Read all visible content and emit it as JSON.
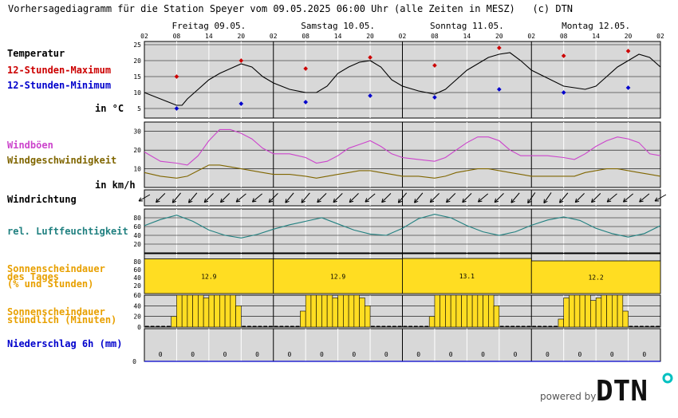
{
  "title": "Vorhersagediagramm für die Station Speyer vom 09.05.2025 06:00 Uhr (alle Zeiten in MESZ)   (c) DTN",
  "labels": {
    "temp": "Temperatur",
    "tmax": "12-Stunden-Maximum",
    "tmin": "12-Stunden-Minimum",
    "temp_unit": "in °C",
    "gust": "Windböen",
    "wind": "Windgeschwindigkeit",
    "wind_unit": "in km/h",
    "dir": "Windrichtung",
    "rh": "rel. Luftfeuchtigkeit",
    "sun_day_1": "Sonnenscheindauer",
    "sun_day_2": "des Tages",
    "sun_day_3": "(% und Stunden)",
    "sun_hour_1": "Sonnenscheindauer",
    "sun_hour_2": "stündlich (Minuten)",
    "precip": "Niederschlag 6h (mm)"
  },
  "brand": {
    "powered": "powered by",
    "logo": "DTN"
  },
  "colors": {
    "temp_label": "#000000",
    "tmax": "#cc0000",
    "tmin": "#0000cc",
    "gust": "#cc44cc",
    "wind": "#806600",
    "rh": "#208080",
    "sun": "#e8a000",
    "sun_fill": "#ffdd22",
    "precip": "#0000cc",
    "panel_bg": "#d8d8d8",
    "logo_dot": "#00c0c0"
  },
  "chart_data": {
    "type": "line",
    "days": [
      "Freitag 09.05.",
      "Samstag 10.05.",
      "Sonntag 11.05.",
      "Montag 12.05."
    ],
    "hour_ticks": [
      "02",
      "08",
      "14",
      "20",
      "02",
      "08",
      "14",
      "20",
      "02",
      "08",
      "14",
      "20",
      "02",
      "08",
      "14",
      "20",
      "02"
    ],
    "temperature": {
      "ylim": [
        2,
        26
      ],
      "yticks": [
        5,
        10,
        15,
        20,
        25
      ],
      "hours": [
        0,
        3,
        6,
        7,
        8,
        10,
        12,
        14,
        16,
        18,
        20,
        22,
        24,
        27,
        30,
        32,
        34,
        36,
        38,
        40,
        42,
        44,
        46,
        48,
        51,
        54,
        56,
        58,
        60,
        62,
        64,
        66,
        68,
        70,
        72,
        75,
        78,
        80,
        82,
        84,
        86,
        88,
        90,
        92,
        94,
        96
      ],
      "values": [
        10,
        8,
        6,
        6,
        8,
        11,
        14,
        16,
        17.5,
        19,
        18,
        15,
        13,
        11,
        10,
        10,
        12,
        16,
        18,
        19.5,
        20,
        18,
        14,
        12,
        10.5,
        9.5,
        11,
        14,
        17,
        19,
        21,
        22,
        22.5,
        20,
        17,
        14.5,
        12,
        11.5,
        11,
        12,
        15,
        18,
        20,
        22,
        21,
        18
      ],
      "max_12h": {
        "hours": [
          6,
          18,
          30,
          42,
          54,
          66,
          78,
          90
        ],
        "values": [
          15,
          20,
          17.5,
          21,
          18.5,
          24,
          21.5,
          23
        ]
      },
      "min_12h": {
        "hours": [
          6,
          18,
          30,
          42,
          54,
          66,
          78,
          90
        ],
        "values": [
          5,
          6.5,
          7,
          9,
          8.5,
          11,
          10,
          11.5
        ]
      }
    },
    "wind": {
      "ylim": [
        0,
        35
      ],
      "yticks": [
        10,
        20,
        30
      ],
      "hours": [
        0,
        3,
        6,
        8,
        10,
        12,
        14,
        16,
        18,
        20,
        22,
        24,
        27,
        30,
        32,
        34,
        36,
        38,
        40,
        42,
        44,
        46,
        48,
        51,
        54,
        56,
        58,
        60,
        62,
        64,
        66,
        68,
        70,
        72,
        75,
        78,
        80,
        82,
        84,
        86,
        88,
        90,
        92,
        94,
        96
      ],
      "gusts": [
        19,
        14,
        13,
        12,
        17,
        25,
        31,
        31,
        29,
        26,
        21,
        18,
        18,
        16,
        13,
        14,
        17,
        21,
        23,
        25,
        22,
        18,
        16,
        15,
        14,
        16,
        20,
        24,
        27,
        27,
        25,
        20,
        17,
        17,
        17,
        16,
        15,
        18,
        22,
        25,
        27,
        26,
        24,
        18,
        17
      ],
      "speed": [
        8,
        6,
        5,
        6,
        9,
        12,
        12,
        11,
        10,
        9,
        8,
        7,
        7,
        6,
        5,
        6,
        7,
        8,
        9,
        9,
        8,
        7,
        6,
        6,
        5,
        6,
        8,
        9,
        10,
        10,
        9,
        8,
        7,
        6,
        6,
        6,
        6,
        8,
        9,
        10,
        10,
        9,
        8,
        7,
        6
      ]
    },
    "wind_direction": {
      "hours": [
        0,
        3,
        6,
        9,
        12,
        15,
        18,
        21,
        24,
        27,
        30,
        33,
        36,
        39,
        42,
        45,
        48,
        51,
        54,
        57,
        60,
        63,
        66,
        69,
        72,
        75,
        78,
        81,
        84,
        87,
        90,
        93,
        96
      ],
      "degrees": [
        60,
        45,
        40,
        40,
        45,
        45,
        50,
        50,
        45,
        40,
        40,
        45,
        45,
        45,
        50,
        45,
        40,
        40,
        45,
        45,
        45,
        50,
        45,
        40,
        35,
        35,
        40,
        45,
        45,
        50,
        50,
        50,
        60
      ]
    },
    "humidity": {
      "ylim": [
        0,
        100
      ],
      "yticks": [
        20,
        40,
        60,
        80
      ],
      "hours": [
        0,
        3,
        6,
        9,
        12,
        15,
        18,
        21,
        24,
        27,
        30,
        33,
        36,
        39,
        42,
        45,
        48,
        51,
        54,
        57,
        60,
        63,
        66,
        69,
        72,
        75,
        78,
        81,
        84,
        87,
        90,
        93,
        96
      ],
      "values": [
        62,
        76,
        86,
        72,
        52,
        40,
        34,
        42,
        54,
        64,
        72,
        80,
        66,
        52,
        43,
        40,
        56,
        78,
        88,
        80,
        62,
        48,
        40,
        48,
        63,
        75,
        82,
        74,
        56,
        44,
        36,
        44,
        62
      ]
    },
    "sunshine_daily": {
      "ylim": [
        0,
        100
      ],
      "yticks": [
        20,
        40,
        60,
        80
      ],
      "days": [
        "09.05.",
        "10.05.",
        "11.05.",
        "12.05."
      ],
      "percent": [
        87,
        87,
        88,
        82
      ],
      "hours_label": [
        "12.9",
        "12.9",
        "13.1",
        "12.2"
      ]
    },
    "sunshine_hourly": {
      "ylim": [
        0,
        60
      ],
      "yticks": [
        20,
        40,
        60
      ],
      "day_minutes": [
        [
          0,
          0,
          0,
          0,
          0,
          20,
          60,
          60,
          60,
          60,
          60,
          55,
          60,
          60,
          60,
          60,
          60,
          40,
          0,
          0,
          0,
          0,
          0,
          0
        ],
        [
          0,
          0,
          0,
          0,
          0,
          30,
          60,
          60,
          60,
          60,
          60,
          55,
          60,
          60,
          60,
          60,
          55,
          40,
          0,
          0,
          0,
          0,
          0,
          0
        ],
        [
          0,
          0,
          0,
          0,
          0,
          20,
          60,
          60,
          60,
          60,
          60,
          60,
          60,
          60,
          60,
          60,
          60,
          40,
          0,
          0,
          0,
          0,
          0,
          0
        ],
        [
          0,
          0,
          0,
          0,
          0,
          15,
          55,
          60,
          60,
          60,
          60,
          50,
          55,
          60,
          60,
          60,
          60,
          30,
          0,
          0,
          0,
          0,
          0,
          0
        ]
      ]
    },
    "precipitation": {
      "hours": [
        3,
        9,
        15,
        21,
        27,
        33,
        39,
        45,
        51,
        57,
        63,
        69,
        75,
        81,
        87,
        93
      ],
      "values": [
        "0",
        "0",
        "0",
        "0",
        "0",
        "0",
        "0",
        "0",
        "0",
        "0",
        "0",
        "0",
        "0",
        "0",
        "0",
        "0"
      ],
      "yticks": [
        "0"
      ]
    }
  }
}
